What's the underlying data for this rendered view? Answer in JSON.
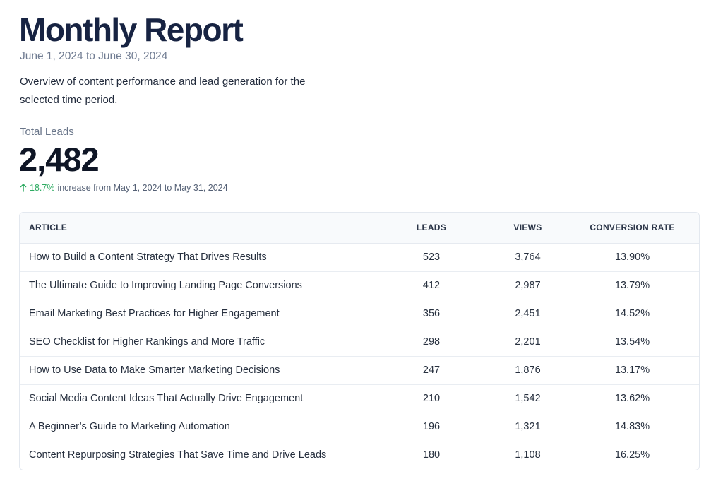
{
  "header": {
    "title": "Monthly Report",
    "date_range": "June 1, 2024 to June 30, 2024",
    "description": "Overview of content performance and lead generation for the selected time period."
  },
  "stats": {
    "label": "Total Leads",
    "value": "2,482",
    "change_icon": "arrow-up-icon",
    "change_percent": "18.7%",
    "change_text": "increase from May 1, 2024 to May 31, 2024",
    "change_color": "#2eab62"
  },
  "table": {
    "columns": [
      "Article",
      "Leads",
      "Views",
      "Conversion Rate"
    ],
    "rows": [
      {
        "article": "How to Build a Content Strategy That Drives Results",
        "leads": "523",
        "views": "3,764",
        "conversion": "13.90%"
      },
      {
        "article": "The Ultimate Guide to Improving Landing Page Conversions",
        "leads": "412",
        "views": "2,987",
        "conversion": "13.79%"
      },
      {
        "article": "Email Marketing Best Practices for Higher Engagement",
        "leads": "356",
        "views": "2,451",
        "conversion": "14.52%"
      },
      {
        "article": "SEO Checklist for Higher Rankings and More Traffic",
        "leads": "298",
        "views": "2,201",
        "conversion": "13.54%"
      },
      {
        "article": "How to Use Data to Make Smarter Marketing Decisions",
        "leads": "247",
        "views": "1,876",
        "conversion": "13.17%"
      },
      {
        "article": "Social Media Content Ideas That Actually Drive Engagement",
        "leads": "210",
        "views": "1,542",
        "conversion": "13.62%"
      },
      {
        "article": "A Beginner’s Guide to Marketing Automation",
        "leads": "196",
        "views": "1,321",
        "conversion": "14.83%"
      },
      {
        "article": "Content Repurposing Strategies That Save Time and Drive Leads",
        "leads": "180",
        "views": "1,108",
        "conversion": "16.25%"
      }
    ]
  }
}
